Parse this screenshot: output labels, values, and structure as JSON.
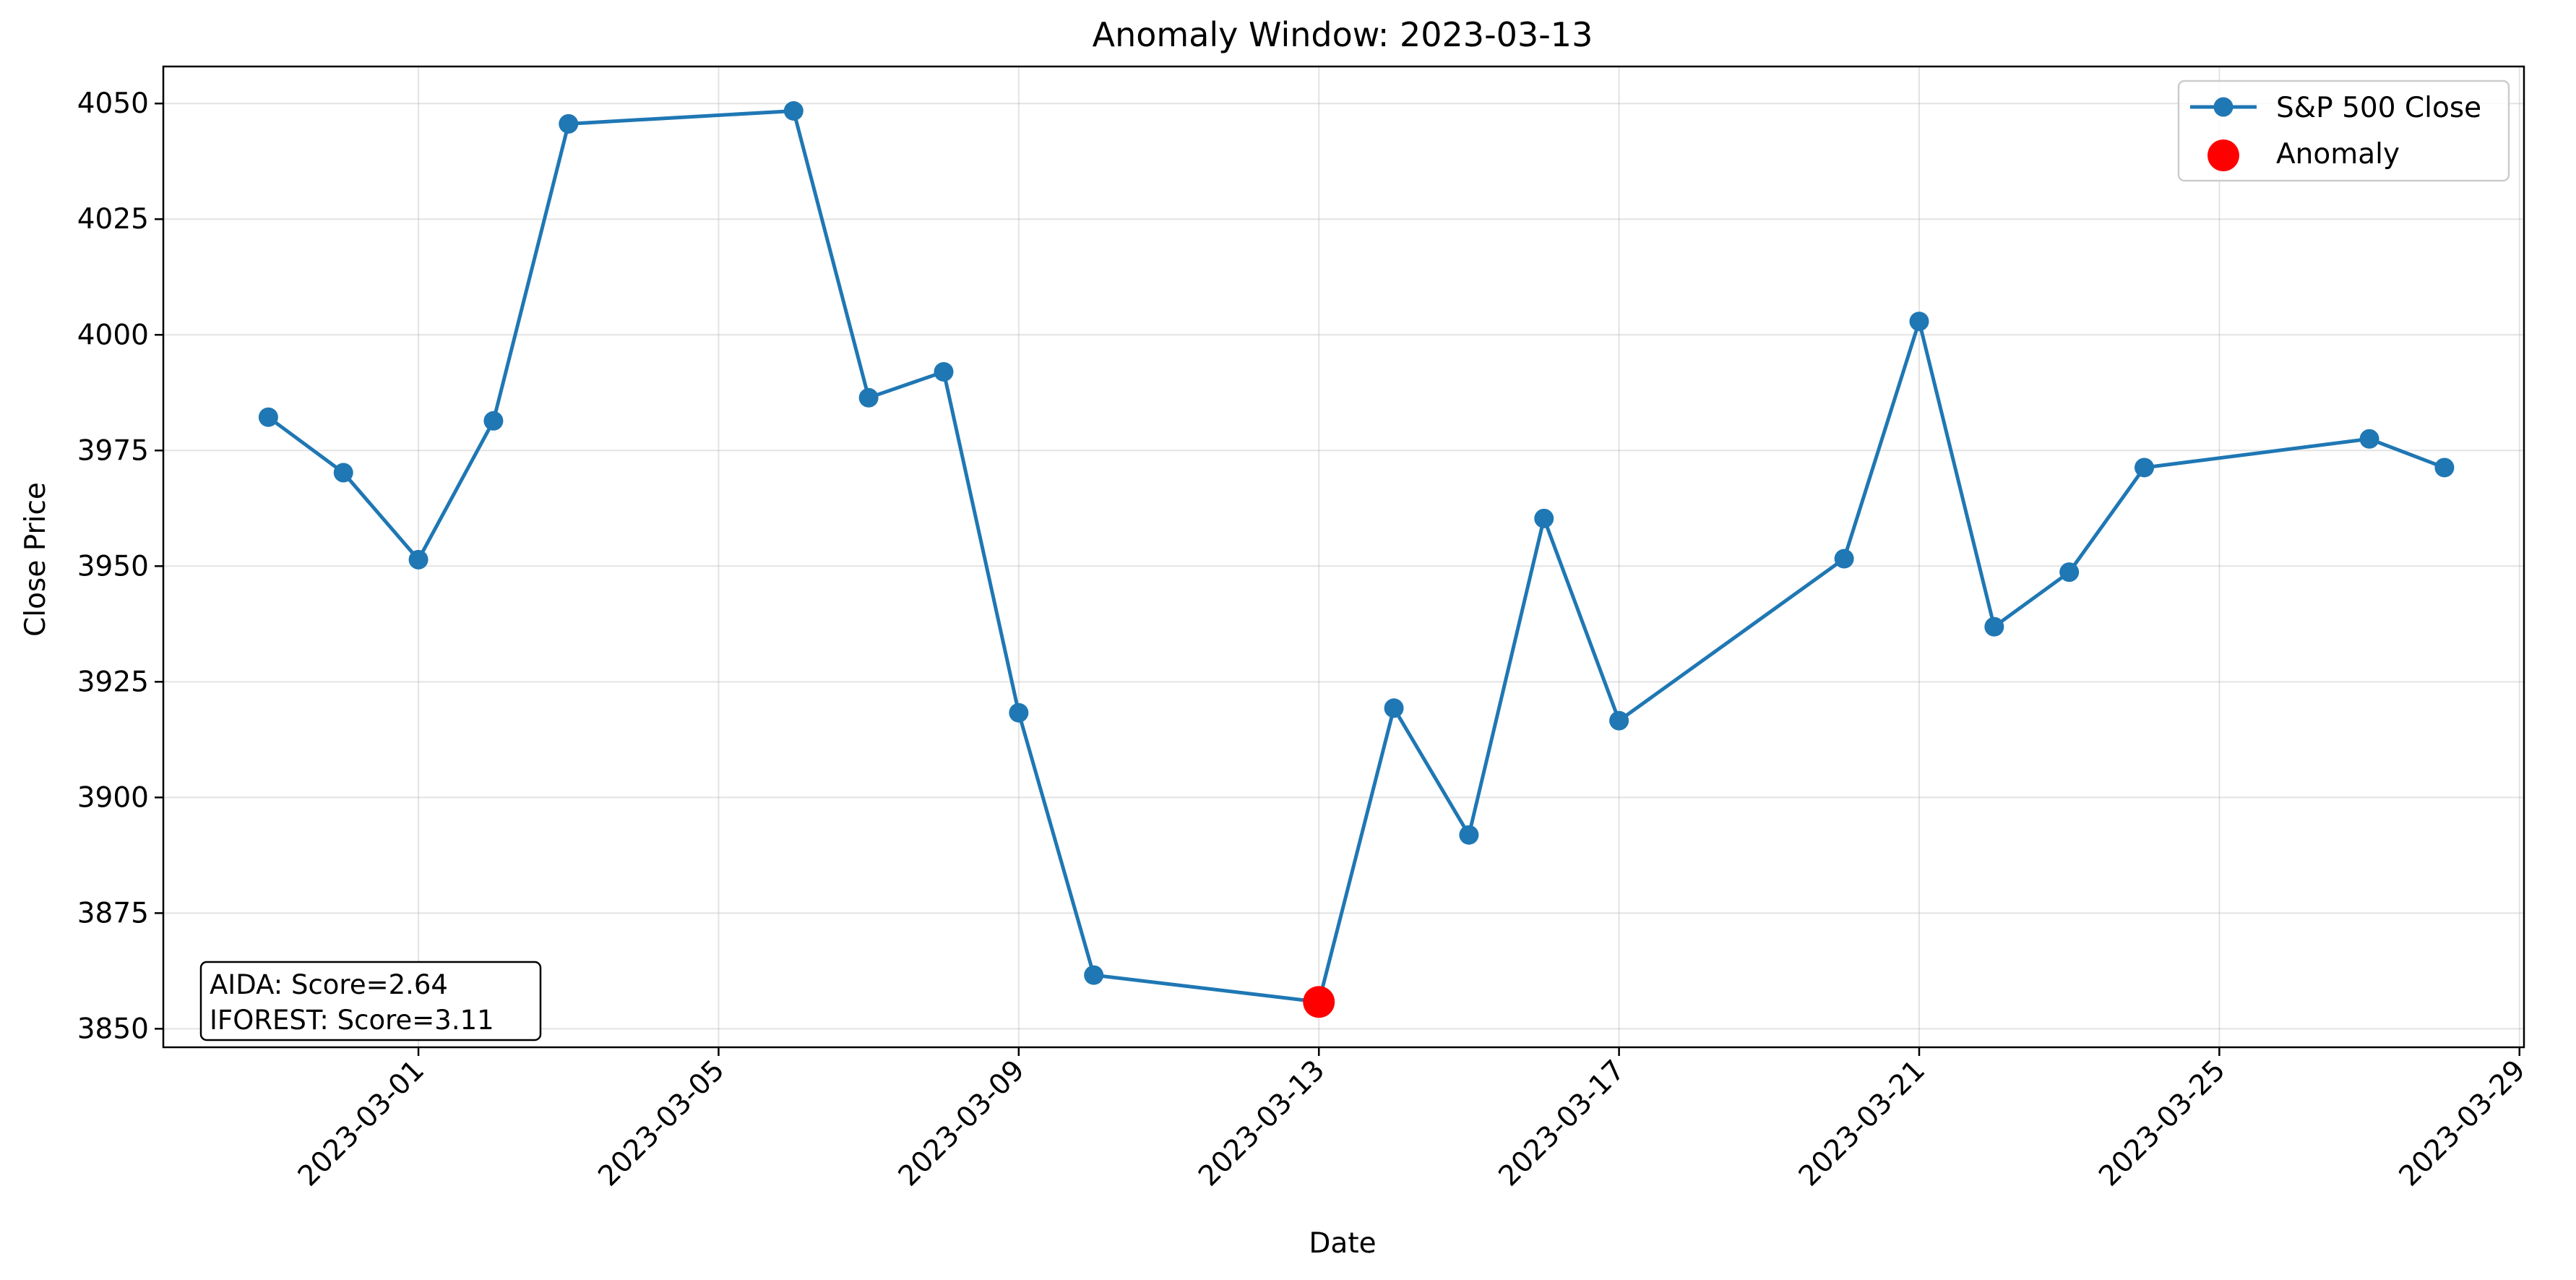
{
  "chart_data": {
    "type": "line",
    "title": "Anomaly Window: 2023-03-13",
    "xlabel": "Date",
    "ylabel": "Close Price",
    "x_ticks": [
      "2023-03-01",
      "2023-03-05",
      "2023-03-09",
      "2023-03-13",
      "2023-03-17",
      "2023-03-21",
      "2023-03-25",
      "2023-03-29"
    ],
    "y_ticks": [
      3850,
      3875,
      3900,
      3925,
      3950,
      3975,
      4000,
      4025,
      4050
    ],
    "xlim": [
      "2023-02-25",
      "2023-03-29"
    ],
    "ylim": [
      3846,
      4058
    ],
    "grid": true,
    "legend_position": "top-right",
    "series": [
      {
        "name": "S&P 500 Close",
        "color": "#1f77b4",
        "marker": "circle",
        "points": [
          {
            "x": "2023-02-27",
            "y": 3982.2
          },
          {
            "x": "2023-02-28",
            "y": 3970.2
          },
          {
            "x": "2023-03-01",
            "y": 3951.4
          },
          {
            "x": "2023-03-02",
            "y": 3981.4
          },
          {
            "x": "2023-03-03",
            "y": 4045.6
          },
          {
            "x": "2023-03-06",
            "y": 4048.4
          },
          {
            "x": "2023-03-07",
            "y": 3986.4
          },
          {
            "x": "2023-03-08",
            "y": 3992.0
          },
          {
            "x": "2023-03-09",
            "y": 3918.3
          },
          {
            "x": "2023-03-10",
            "y": 3861.6
          },
          {
            "x": "2023-03-13",
            "y": 3855.8
          },
          {
            "x": "2023-03-14",
            "y": 3919.3
          },
          {
            "x": "2023-03-15",
            "y": 3891.9
          },
          {
            "x": "2023-03-16",
            "y": 3960.3
          },
          {
            "x": "2023-03-17",
            "y": 3916.6
          },
          {
            "x": "2023-03-20",
            "y": 3951.6
          },
          {
            "x": "2023-03-21",
            "y": 4002.9
          },
          {
            "x": "2023-03-22",
            "y": 3936.9
          },
          {
            "x": "2023-03-23",
            "y": 3948.7
          },
          {
            "x": "2023-03-24",
            "y": 3971.3
          },
          {
            "x": "2023-03-27",
            "y": 3977.5
          },
          {
            "x": "2023-03-28",
            "y": 3971.3
          }
        ]
      },
      {
        "name": "Anomaly",
        "color": "#ff0000",
        "marker": "circle",
        "points": [
          {
            "x": "2023-03-13",
            "y": 3855.8
          }
        ]
      }
    ],
    "annotation": {
      "lines": [
        "AIDA: Score=2.64",
        "IFOREST: Score=3.11"
      ],
      "position": "bottom-left"
    }
  }
}
